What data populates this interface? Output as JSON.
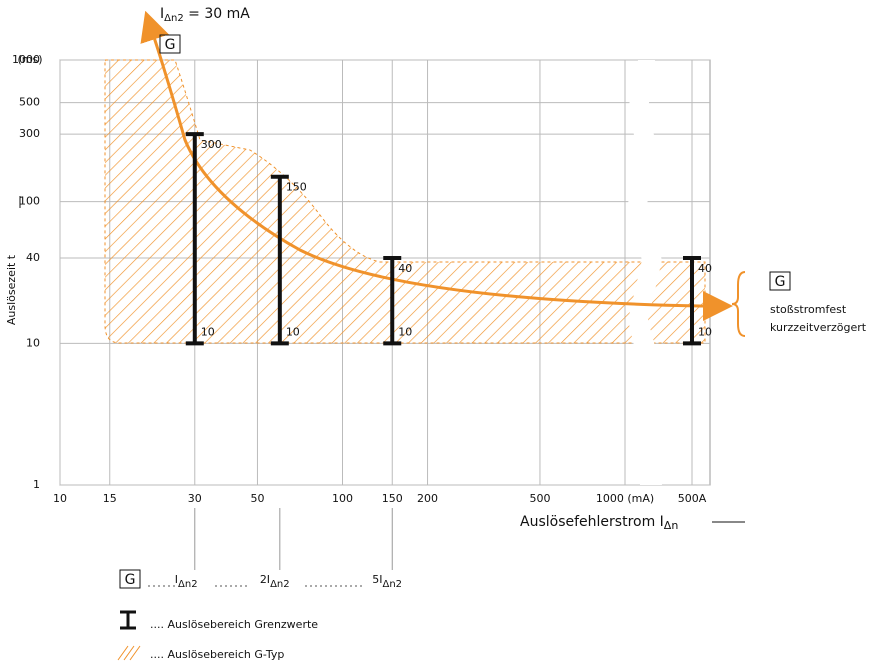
{
  "chart_data": {
    "type": "range",
    "title": {
      "main": "I",
      "sub": "Δn2",
      "rest": " = 30 mA"
    },
    "curve_badge": "G",
    "y_label": "Auslösezeit t",
    "y_unit": "(ms)",
    "x_label": {
      "main": "Auslösefehlerstrom I",
      "sub": "Δn"
    },
    "xlim": [
      10,
      1000
    ],
    "ylim": [
      1,
      1000
    ],
    "log_x": true,
    "log_y": true,
    "grid": true,
    "x_break": true,
    "xticks": [
      10,
      15,
      30,
      50,
      100,
      150,
      200,
      500,
      {
        "value": 1000,
        "label": "1000 (mA)"
      },
      {
        "value": 500000,
        "label": "500A"
      }
    ],
    "yticks": [
      1,
      10,
      40,
      100,
      300,
      500,
      1000
    ],
    "color": "#f0922b",
    "series": {
      "x": [
        30,
        60,
        150,
        500000
      ],
      "low": [
        10,
        10,
        10,
        10
      ],
      "high": [
        300,
        150,
        40,
        40
      ]
    },
    "annotation": {
      "badge": "G",
      "lines": [
        "stoßstromfest",
        "kurzzeitverzögert"
      ]
    },
    "legend": {
      "badge": "G",
      "markers": [
        {
          "main": "I",
          "sub": "Δn2"
        },
        {
          "main": "2I",
          "sub": "Δn2"
        },
        {
          "main": "5I",
          "sub": "Δn2"
        }
      ],
      "range_label": "Auslösebereich Grenzwerte",
      "area_label": "Auslösebereich G-Typ"
    }
  }
}
